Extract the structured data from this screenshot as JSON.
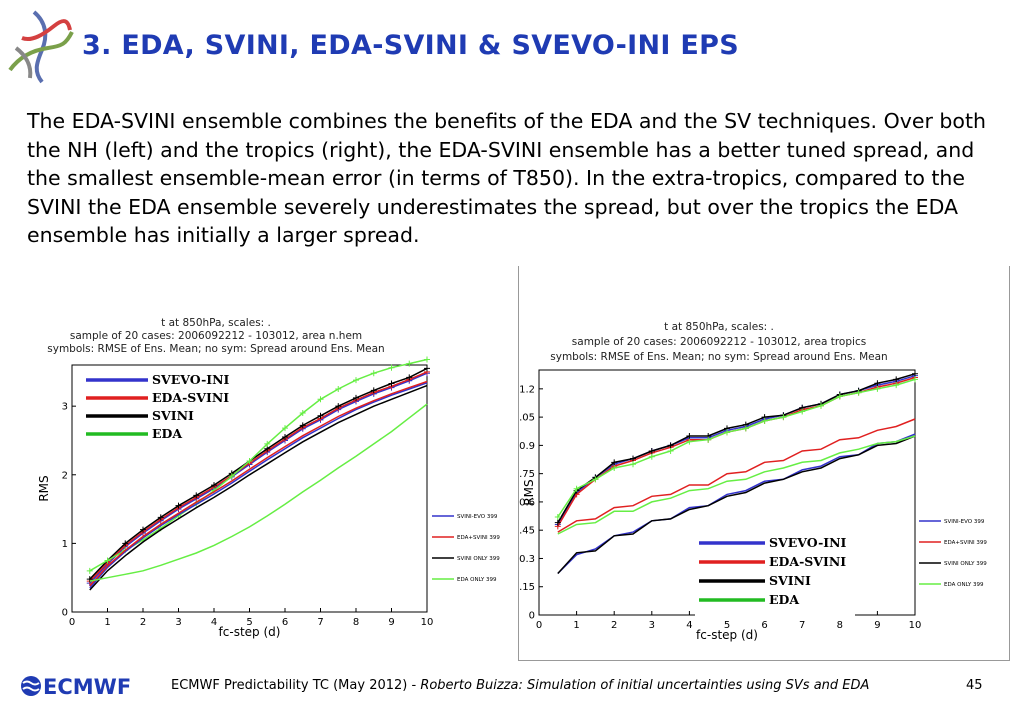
{
  "slide": {
    "title": "3. EDA, SVINI, EDA-SVINI & SVEVO-INI EPS",
    "body": "The EDA-SVINI ensemble combines the benefits of the EDA and the SV techniques. Over both the NH (left) and the tropics (right), the EDA-SVINI ensemble has a better tuned spread, and the smallest ensemble-mean error (in terms of T850). In the extra-tropics, compared to the SVINI the EDA ensemble severely underestimates the spread, but over the tropics the EDA ensemble has initially a larger spread."
  },
  "footer": {
    "logo_text": "ECMWF",
    "left": "ECMWF Predictability TC (May 2012) - ",
    "italic": "Roberto Buizza: Simulation of initial uncertainties using SVs and EDA",
    "page": "45"
  },
  "colors": {
    "title": "#1f3bb3",
    "svevo_ini": "#3333cc",
    "eda_svini": "#e02020",
    "svini": "#000000",
    "eda": "#22bb22",
    "eda_light": "#66ee44"
  },
  "chart_data": [
    {
      "type": "line",
      "panel": "left",
      "title_lines": [
        "t at 850hPa,   scales: .",
        "sample of 20 cases: 2006092212 - 103012, area n.hem",
        "symbols: RMSE of Ens. Mean; no sym: Spread around  Ens. Mean"
      ],
      "xlabel": "fc-step (d)",
      "ylabel": "RMS",
      "xlim": [
        0,
        10
      ],
      "ylim": [
        0,
        3.6
      ],
      "xticks": [
        "0",
        "1",
        "2",
        "3",
        "4",
        "5",
        "6",
        "7",
        "8",
        "9",
        "10"
      ],
      "yticks": [
        "0",
        "1",
        "2",
        "3"
      ],
      "ytick_values": [
        0,
        1,
        2,
        3
      ],
      "x": [
        0.5,
        1,
        1.5,
        2,
        2.5,
        3,
        3.5,
        4,
        4.5,
        5,
        5.5,
        6,
        6.5,
        7,
        7.5,
        8,
        8.5,
        9,
        9.5,
        10
      ],
      "series": [
        {
          "name": "SVEVO-INI",
          "color_key": "svevo_ini",
          "kind": "rmse",
          "values": [
            0.42,
            0.7,
            0.95,
            1.15,
            1.33,
            1.5,
            1.65,
            1.8,
            1.97,
            2.15,
            2.33,
            2.5,
            2.67,
            2.8,
            2.95,
            3.07,
            3.18,
            3.27,
            3.37,
            3.48
          ]
        },
        {
          "name": "EDA-SVINI",
          "color_key": "eda_svini",
          "kind": "rmse",
          "values": [
            0.45,
            0.72,
            0.97,
            1.17,
            1.35,
            1.52,
            1.67,
            1.82,
            1.99,
            2.17,
            2.35,
            2.52,
            2.69,
            2.82,
            2.97,
            3.09,
            3.2,
            3.29,
            3.39,
            3.5
          ]
        },
        {
          "name": "SVINI",
          "color_key": "svini",
          "kind": "rmse",
          "values": [
            0.48,
            0.75,
            1.0,
            1.2,
            1.38,
            1.55,
            1.7,
            1.85,
            2.02,
            2.2,
            2.38,
            2.55,
            2.72,
            2.86,
            3.0,
            3.12,
            3.23,
            3.33,
            3.42,
            3.55
          ]
        },
        {
          "name": "EDA",
          "color_key": "eda_light",
          "kind": "rmse",
          "values": [
            0.6,
            0.75,
            0.9,
            1.05,
            1.22,
            1.4,
            1.58,
            1.77,
            1.98,
            2.2,
            2.45,
            2.68,
            2.9,
            3.1,
            3.25,
            3.38,
            3.48,
            3.56,
            3.62,
            3.68
          ]
        },
        {
          "name": "",
          "color_key": "svevo_ini",
          "kind": "spread",
          "values": [
            0.35,
            0.65,
            0.88,
            1.08,
            1.26,
            1.42,
            1.57,
            1.72,
            1.88,
            2.05,
            2.22,
            2.38,
            2.54,
            2.68,
            2.82,
            2.95,
            3.06,
            3.16,
            3.25,
            3.34
          ]
        },
        {
          "name": "",
          "color_key": "eda_svini",
          "kind": "spread",
          "values": [
            0.38,
            0.67,
            0.9,
            1.1,
            1.28,
            1.44,
            1.6,
            1.75,
            1.91,
            2.08,
            2.25,
            2.41,
            2.57,
            2.71,
            2.85,
            2.97,
            3.08,
            3.18,
            3.27,
            3.36
          ]
        },
        {
          "name": "",
          "color_key": "svini",
          "kind": "spread",
          "values": [
            0.32,
            0.6,
            0.82,
            1.02,
            1.2,
            1.36,
            1.52,
            1.67,
            1.83,
            2.0,
            2.16,
            2.32,
            2.48,
            2.62,
            2.76,
            2.88,
            3.0,
            3.1,
            3.2,
            3.3
          ]
        },
        {
          "name": "",
          "color_key": "eda_light",
          "kind": "spread",
          "values": [
            0.45,
            0.5,
            0.55,
            0.6,
            0.68,
            0.77,
            0.86,
            0.97,
            1.1,
            1.24,
            1.4,
            1.57,
            1.75,
            1.92,
            2.1,
            2.27,
            2.45,
            2.63,
            2.83,
            3.03
          ]
        }
      ],
      "legend_small": [
        "SVINI-EVO 399",
        "EDA+SVINI 399",
        "SVINI ONLY 399",
        "EDA ONLY 399"
      ],
      "legend_big": [
        "SVEVO-INI",
        "EDA-SVINI",
        "SVINI",
        "EDA"
      ],
      "legend_placement": "top-left"
    },
    {
      "type": "line",
      "panel": "right",
      "title_lines": [
        "t at 850hPa,   scales: .",
        "sample of 20 cases: 2006092212 - 103012, area tropics",
        "symbols: RMSE of Ens. Mean; no sym: Spread around  Ens. Mean"
      ],
      "xlabel": "fc-step (d)",
      "ylabel": "RMS",
      "xlim": [
        0,
        10
      ],
      "ylim": [
        0,
        1.3
      ],
      "xticks": [
        "0",
        "1",
        "2",
        "3",
        "4",
        "5",
        "6",
        "7",
        "8",
        "9",
        "10"
      ],
      "yticks": [
        "0",
        "0.15",
        "0.3",
        "0.45",
        "0.6",
        "0.75",
        "0.9",
        "1.05",
        "1.2"
      ],
      "ytick_values": [
        0,
        0.15,
        0.3,
        0.45,
        0.6,
        0.75,
        0.9,
        1.05,
        1.2
      ],
      "x": [
        0.5,
        1,
        1.5,
        2,
        2.5,
        3,
        3.5,
        4,
        4.5,
        5,
        5.5,
        6,
        6.5,
        7,
        7.5,
        8,
        8.5,
        9,
        9.5,
        10
      ],
      "series": [
        {
          "name": "SVEVO-INI",
          "color_key": "svevo_ini",
          "kind": "rmse",
          "values": [
            0.48,
            0.65,
            0.73,
            0.8,
            0.83,
            0.87,
            0.9,
            0.94,
            0.94,
            0.98,
            1.0,
            1.04,
            1.06,
            1.1,
            1.12,
            1.17,
            1.19,
            1.22,
            1.24,
            1.27
          ]
        },
        {
          "name": "EDA-SVINI",
          "color_key": "eda_svini",
          "kind": "rmse",
          "values": [
            0.47,
            0.64,
            0.72,
            0.79,
            0.82,
            0.86,
            0.89,
            0.93,
            0.93,
            0.97,
            0.99,
            1.03,
            1.05,
            1.09,
            1.11,
            1.16,
            1.18,
            1.21,
            1.23,
            1.26
          ]
        },
        {
          "name": "SVINI",
          "color_key": "svini",
          "kind": "rmse",
          "values": [
            0.49,
            0.66,
            0.73,
            0.81,
            0.83,
            0.87,
            0.9,
            0.95,
            0.95,
            0.99,
            1.01,
            1.05,
            1.06,
            1.1,
            1.12,
            1.17,
            1.19,
            1.23,
            1.25,
            1.28
          ]
        },
        {
          "name": "EDA",
          "color_key": "eda_light",
          "kind": "rmse",
          "values": [
            0.52,
            0.67,
            0.72,
            0.78,
            0.8,
            0.84,
            0.87,
            0.92,
            0.93,
            0.97,
            0.99,
            1.03,
            1.05,
            1.08,
            1.11,
            1.16,
            1.18,
            1.2,
            1.22,
            1.25
          ]
        },
        {
          "name": "",
          "color_key": "svevo_ini",
          "kind": "spread",
          "values": [
            0.22,
            0.32,
            0.35,
            0.42,
            0.44,
            0.5,
            0.51,
            0.57,
            0.58,
            0.64,
            0.66,
            0.71,
            0.72,
            0.77,
            0.79,
            0.84,
            0.85,
            0.91,
            0.92,
            0.96
          ]
        },
        {
          "name": "",
          "color_key": "eda_svini",
          "kind": "spread",
          "values": [
            0.44,
            0.5,
            0.51,
            0.57,
            0.58,
            0.63,
            0.64,
            0.69,
            0.69,
            0.75,
            0.76,
            0.81,
            0.82,
            0.87,
            0.88,
            0.93,
            0.94,
            0.98,
            1.0,
            1.04
          ]
        },
        {
          "name": "",
          "color_key": "svini",
          "kind": "spread",
          "values": [
            0.22,
            0.33,
            0.34,
            0.42,
            0.43,
            0.5,
            0.51,
            0.56,
            0.58,
            0.63,
            0.65,
            0.7,
            0.72,
            0.76,
            0.78,
            0.83,
            0.85,
            0.9,
            0.91,
            0.95
          ]
        },
        {
          "name": "",
          "color_key": "eda_light",
          "kind": "spread",
          "values": [
            0.43,
            0.48,
            0.49,
            0.55,
            0.55,
            0.6,
            0.62,
            0.66,
            0.67,
            0.71,
            0.72,
            0.76,
            0.78,
            0.81,
            0.82,
            0.86,
            0.88,
            0.91,
            0.92,
            0.95
          ]
        }
      ],
      "legend_small": [
        "SVINI-EVO 399",
        "EDA+SVINI 399",
        "SVINI ONLY 399",
        "EDA ONLY 399"
      ],
      "legend_big": [
        "SVEVO-INI",
        "EDA-SVINI",
        "SVINI",
        "EDA"
      ],
      "legend_placement": "bottom-right"
    }
  ]
}
